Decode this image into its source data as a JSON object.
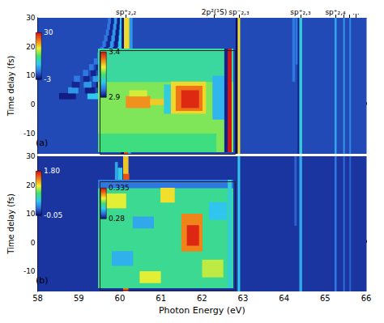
{
  "chart_data": {
    "type": "heatmap",
    "x_label": "Photon Energy (eV)",
    "panels": [
      {
        "label": "(a)",
        "y_label": "Time delay (fs)",
        "xlim": [
          58,
          66
        ],
        "xticks": [
          58,
          59,
          60,
          61,
          62,
          63,
          64,
          65,
          66
        ],
        "ylim": [
          -17,
          30
        ],
        "yticks": [
          -10,
          0,
          10,
          20,
          30
        ],
        "tick_labels": "y",
        "top_markers": [
          {
            "value": 60.15,
            "label": "sp⁺₂,₂"
          },
          {
            "value": 62.3,
            "label": "2p²(¹S)"
          },
          {
            "value": 62.9,
            "label": "sp⁻₂,₃"
          },
          {
            "value": 64.4,
            "label": "sp⁺₂,₃"
          },
          {
            "value": 65.25,
            "label": "sp⁺₂,₄"
          },
          {
            "value": 65.45,
            "label": null
          },
          {
            "value": 65.6,
            "label": null
          },
          {
            "value": 65.75,
            "label": "..."
          }
        ],
        "colorbar": {
          "range": [
            -3,
            30
          ],
          "ticks": [
            30,
            -3
          ]
        },
        "cells": [
          [
            58,
            66,
            -17,
            30,
            0.5
          ],
          [
            59.21,
            59.61,
            2,
            4,
            8
          ],
          [
            58.52,
            58.92,
            2,
            4,
            -2
          ],
          [
            59.57,
            59.81,
            4,
            6,
            8
          ],
          [
            59.15,
            59.39,
            4,
            6,
            -2
          ],
          [
            58.74,
            58.98,
            4,
            6,
            5
          ],
          [
            59.71,
            59.89,
            6,
            8,
            8
          ],
          [
            59.42,
            59.6,
            6,
            8,
            -2
          ],
          [
            59.12,
            59.3,
            6,
            8,
            5
          ],
          [
            58.83,
            59.01,
            6,
            8,
            -1.5
          ],
          [
            59.8,
            59.94,
            8,
            10,
            8
          ],
          [
            59.57,
            59.71,
            8,
            10,
            -2
          ],
          [
            59.34,
            59.48,
            8,
            10,
            5
          ],
          [
            59.11,
            59.25,
            8,
            10,
            -1.5
          ],
          [
            58.88,
            59.02,
            8,
            10,
            3
          ],
          [
            59.85,
            59.97,
            10,
            12,
            8
          ],
          [
            59.66,
            59.78,
            10,
            12,
            -2
          ],
          [
            59.48,
            59.6,
            10,
            12,
            5
          ],
          [
            59.29,
            59.41,
            10,
            12,
            -1.5
          ],
          [
            59.1,
            59.22,
            10,
            12,
            3
          ],
          [
            59.89,
            59.99,
            12,
            14,
            8
          ],
          [
            59.73,
            59.83,
            12,
            14,
            -2
          ],
          [
            59.57,
            59.67,
            12,
            14,
            5
          ],
          [
            59.41,
            59.51,
            12,
            14,
            -1.5
          ],
          [
            59.25,
            59.35,
            12,
            14,
            3
          ],
          [
            59.915,
            60.005,
            14,
            16,
            8
          ],
          [
            59.775,
            59.865,
            14,
            16,
            -2
          ],
          [
            59.645,
            59.735,
            14,
            16,
            5
          ],
          [
            59.505,
            59.595,
            14,
            16,
            -1.5
          ],
          [
            59.365,
            59.455,
            14,
            16,
            3
          ],
          [
            59.94,
            60.02,
            16,
            18,
            8
          ],
          [
            59.82,
            59.9,
            16,
            18,
            -2
          ],
          [
            59.69,
            59.77,
            16,
            18,
            5
          ],
          [
            59.57,
            59.65,
            16,
            18,
            -1.5
          ],
          [
            59.45,
            59.53,
            16,
            18,
            3
          ],
          [
            59.95,
            60.03,
            18,
            20,
            8
          ],
          [
            59.84,
            59.92,
            18,
            20,
            -2
          ],
          [
            59.73,
            59.81,
            18,
            20,
            5
          ],
          [
            59.62,
            59.7,
            18,
            20,
            -1.5
          ],
          [
            59.52,
            59.6,
            18,
            20,
            3
          ],
          [
            59.965,
            60.035,
            20,
            22,
            8
          ],
          [
            59.865,
            59.935,
            20,
            22,
            -2
          ],
          [
            59.765,
            59.835,
            20,
            22,
            5
          ],
          [
            59.675,
            59.745,
            20,
            22,
            -1.5
          ],
          [
            59.575,
            59.645,
            20,
            22,
            3
          ],
          [
            59.975,
            60.045,
            22,
            24,
            8
          ],
          [
            59.885,
            59.955,
            22,
            24,
            -2
          ],
          [
            59.795,
            59.865,
            22,
            24,
            5
          ],
          [
            59.705,
            59.775,
            22,
            24,
            -1.5
          ],
          [
            59.615,
            59.685,
            22,
            24,
            3
          ],
          [
            59.99,
            60.05,
            24,
            26,
            8
          ],
          [
            59.9,
            59.96,
            24,
            26,
            -2
          ],
          [
            59.82,
            59.88,
            24,
            26,
            5
          ],
          [
            59.74,
            59.8,
            24,
            26,
            -1.5
          ],
          [
            59.66,
            59.72,
            24,
            26,
            3
          ],
          [
            59.99,
            60.05,
            26,
            28,
            8
          ],
          [
            59.92,
            59.98,
            26,
            28,
            -2
          ],
          [
            59.84,
            59.9,
            26,
            28,
            5
          ],
          [
            59.76,
            59.82,
            26,
            28,
            -1.5
          ],
          [
            59.69,
            59.75,
            26,
            28,
            3
          ],
          [
            60.0,
            60.06,
            28,
            30,
            8
          ],
          [
            59.93,
            59.99,
            28,
            30,
            -2
          ],
          [
            59.86,
            59.92,
            28,
            30,
            5
          ],
          [
            59.78,
            59.84,
            28,
            30,
            -1.5
          ],
          [
            59.71,
            59.77,
            28,
            30,
            3
          ],
          [
            60.22,
            60.3,
            0.5,
            30,
            5
          ],
          [
            60.03,
            60.1,
            -17,
            -1.5,
            -3
          ],
          [
            60.1,
            60.2,
            -17,
            -1.5,
            27
          ],
          [
            60.2,
            60.26,
            -17,
            -1.5,
            6
          ],
          [
            59.85,
            60.3,
            -1.5,
            0.5,
            -3
          ],
          [
            60.04,
            60.1,
            0.5,
            30,
            -2
          ],
          [
            60.1,
            60.2,
            0.5,
            8,
            28
          ],
          [
            60.1,
            60.22,
            8,
            30,
            20
          ],
          [
            62.82,
            62.87,
            -17,
            30,
            -3
          ],
          [
            62.87,
            62.92,
            -17,
            30,
            20
          ],
          [
            64.33,
            64.37,
            -17,
            30,
            -2
          ],
          [
            64.37,
            64.43,
            -17,
            30,
            9
          ],
          [
            64.2,
            64.26,
            8,
            30,
            3
          ],
          [
            64.28,
            64.32,
            14,
            30,
            3
          ],
          [
            65.23,
            65.27,
            -17,
            30,
            6
          ],
          [
            65.44,
            65.47,
            -17,
            30,
            5
          ],
          [
            65.59,
            65.62,
            -17,
            30,
            4
          ]
        ],
        "inset": {
          "xlim": [
            61,
            62.95
          ],
          "ylim": [
            -16.4,
            19.4
          ],
          "tick_labels": false,
          "colorbar": {
            "range": [
              2.9,
              3.4
            ],
            "ticks": [
              3.4,
              2.9
            ]
          },
          "cells": [
            [
              61,
              62.95,
              -16.4,
              19.4,
              3.18
            ],
            [
              61,
              62.95,
              8,
              19.4,
              3.12
            ],
            [
              61,
              62.7,
              -16.4,
              -10,
              3.14
            ],
            [
              61.4,
              61.75,
              -1,
              3,
              3.3
            ],
            [
              61.75,
              62,
              0,
              2,
              3.26
            ],
            [
              61.45,
              61.7,
              3,
              5,
              3.22
            ],
            [
              61.95,
              62.05,
              -3,
              7,
              3.08
            ],
            [
              62.05,
              62.55,
              -3,
              8,
              3.25
            ],
            [
              62.12,
              62.5,
              -2,
              6.5,
              3.32
            ],
            [
              62.2,
              62.45,
              -1,
              5,
              3.38
            ],
            [
              62.65,
              62.82,
              -5,
              10,
              3.05
            ],
            [
              62.82,
              62.87,
              -16.4,
              19.4,
              2.92
            ],
            [
              62.87,
              62.92,
              -16.4,
              19.4,
              3.4
            ]
          ]
        }
      },
      {
        "label": "(b)",
        "y_label": "Time delay (fs)",
        "xlim": [
          58,
          66
        ],
        "xticks": [
          58,
          59,
          60,
          61,
          62,
          63,
          64,
          65,
          66
        ],
        "ylim": [
          -17,
          30
        ],
        "yticks": [
          -10,
          0,
          10,
          20,
          30
        ],
        "tick_labels": true,
        "colorbar": {
          "range": [
            -0.05,
            1.8
          ],
          "ticks": [
            {
              "value": 1.8,
              "label": "1.80"
            },
            -0.05
          ]
        },
        "cells": [
          [
            58,
            66,
            -17,
            30,
            0.08
          ],
          [
            59.5,
            59.6,
            3,
            9,
            0.35
          ],
          [
            59.7,
            59.8,
            4,
            10,
            0.45
          ],
          [
            59.85,
            59.95,
            2,
            8,
            0.6
          ],
          [
            59.8,
            59.88,
            10,
            18,
            0.5
          ],
          [
            59.92,
            60.0,
            8,
            16,
            0.7
          ],
          [
            59.88,
            59.94,
            18,
            28,
            0.45
          ],
          [
            59.95,
            60.05,
            16,
            26,
            0.6
          ],
          [
            60.08,
            60.2,
            -17,
            -2,
            1.5
          ],
          [
            60.05,
            60.25,
            -2,
            0.5,
            1.1
          ],
          [
            60.12,
            60.25,
            0.5,
            15,
            0.8
          ],
          [
            60.08,
            60.22,
            15,
            24,
            1.6
          ],
          [
            60.08,
            60.2,
            24,
            30,
            1.3
          ],
          [
            60.25,
            60.32,
            2,
            20,
            0.35
          ],
          [
            62.87,
            62.92,
            -17,
            30,
            0.55
          ],
          [
            64.37,
            64.43,
            -17,
            30,
            0.45
          ],
          [
            64.25,
            64.3,
            6,
            30,
            0.22
          ],
          [
            65.23,
            65.27,
            -17,
            30,
            0.3
          ],
          [
            65.44,
            65.47,
            -17,
            30,
            0.25
          ],
          [
            65.59,
            65.62,
            -17,
            30,
            0.22
          ]
        ],
        "inset": {
          "xlim": [
            61,
            62.95
          ],
          "ylim": [
            -15.9,
            21.8
          ],
          "tick_labels": false,
          "colorbar": {
            "range": [
              0.28,
              0.335
            ],
            "ticks": [
              0.335,
              0.28
            ]
          },
          "cells": [
            [
              61,
              62.95,
              -15.9,
              21.8,
              0.305
            ],
            [
              61,
              62.95,
              19,
              21.8,
              0.29
            ],
            [
              61.1,
              61.4,
              12,
              17,
              0.316
            ],
            [
              61.5,
              61.8,
              5,
              9,
              0.295
            ],
            [
              61.9,
              62.1,
              14,
              19,
              0.318
            ],
            [
              61.2,
              61.5,
              -8,
              -3,
              0.296
            ],
            [
              62.5,
              62.8,
              -12,
              -6,
              0.314
            ],
            [
              61.6,
              61.9,
              -14,
              -10,
              0.316
            ],
            [
              62.6,
              62.85,
              8,
              14,
              0.298
            ],
            [
              62.2,
              62.5,
              -3,
              10,
              0.325
            ],
            [
              62.28,
              62.45,
              -1,
              6,
              0.333
            ],
            [
              62.87,
              62.92,
              -15.9,
              21.8,
              0.3
            ]
          ]
        }
      }
    ]
  }
}
